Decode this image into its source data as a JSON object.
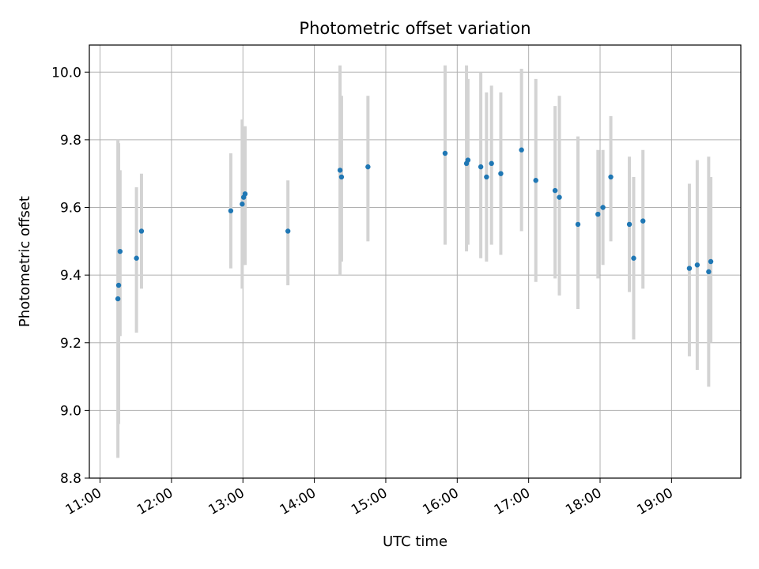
{
  "chart_data": {
    "type": "scatter",
    "title": "Photometric offset variation",
    "xlabel": "UTC time",
    "ylabel": "Photometric offset",
    "x_unit": "hours (UTC)",
    "xlim": [
      10.85,
      19.97
    ],
    "ylim": [
      8.8,
      10.08
    ],
    "x_tick_values": [
      11,
      12,
      13,
      14,
      15,
      16,
      17,
      18,
      19
    ],
    "x_tick_labels": [
      "11:00",
      "12:00",
      "13:00",
      "14:00",
      "15:00",
      "16:00",
      "17:00",
      "18:00",
      "19:00"
    ],
    "y_tick_values": [
      8.8,
      9.0,
      9.2,
      9.4,
      9.6,
      9.8,
      10.0
    ],
    "y_tick_labels": [
      "8.8",
      "9.0",
      "9.2",
      "9.4",
      "9.6",
      "9.8",
      "10.0"
    ],
    "grid": true,
    "marker_color": "#1f77b4",
    "errorbar_color": "#d3d3d3",
    "points": [
      {
        "x": 11.25,
        "y": 9.33,
        "ylow": 8.86,
        "yhigh": 9.8
      },
      {
        "x": 11.26,
        "y": 9.37,
        "ylow": 8.96,
        "yhigh": 9.79
      },
      {
        "x": 11.28,
        "y": 9.47,
        "ylow": 9.22,
        "yhigh": 9.71
      },
      {
        "x": 11.51,
        "y": 9.45,
        "ylow": 9.23,
        "yhigh": 9.66
      },
      {
        "x": 11.58,
        "y": 9.53,
        "ylow": 9.36,
        "yhigh": 9.7
      },
      {
        "x": 12.83,
        "y": 9.59,
        "ylow": 9.42,
        "yhigh": 9.76
      },
      {
        "x": 12.99,
        "y": 9.61,
        "ylow": 9.36,
        "yhigh": 9.86
      },
      {
        "x": 13.01,
        "y": 9.63,
        "ylow": 9.43,
        "yhigh": 9.83
      },
      {
        "x": 13.03,
        "y": 9.64,
        "ylow": 9.43,
        "yhigh": 9.84
      },
      {
        "x": 13.63,
        "y": 9.53,
        "ylow": 9.37,
        "yhigh": 9.68
      },
      {
        "x": 14.36,
        "y": 9.71,
        "ylow": 9.4,
        "yhigh": 10.02
      },
      {
        "x": 14.38,
        "y": 9.69,
        "ylow": 9.44,
        "yhigh": 9.93
      },
      {
        "x": 14.75,
        "y": 9.72,
        "ylow": 9.5,
        "yhigh": 9.93
      },
      {
        "x": 15.83,
        "y": 9.76,
        "ylow": 9.49,
        "yhigh": 10.02
      },
      {
        "x": 16.13,
        "y": 9.73,
        "ylow": 9.47,
        "yhigh": 10.02
      },
      {
        "x": 16.15,
        "y": 9.74,
        "ylow": 9.49,
        "yhigh": 9.98
      },
      {
        "x": 16.33,
        "y": 9.72,
        "ylow": 9.45,
        "yhigh": 10.0
      },
      {
        "x": 16.41,
        "y": 9.69,
        "ylow": 9.44,
        "yhigh": 9.94
      },
      {
        "x": 16.48,
        "y": 9.73,
        "ylow": 9.49,
        "yhigh": 9.96
      },
      {
        "x": 16.61,
        "y": 9.7,
        "ylow": 9.46,
        "yhigh": 9.94
      },
      {
        "x": 16.9,
        "y": 9.77,
        "ylow": 9.53,
        "yhigh": 10.01
      },
      {
        "x": 17.1,
        "y": 9.68,
        "ylow": 9.38,
        "yhigh": 9.98
      },
      {
        "x": 17.37,
        "y": 9.65,
        "ylow": 9.39,
        "yhigh": 9.9
      },
      {
        "x": 17.43,
        "y": 9.63,
        "ylow": 9.34,
        "yhigh": 9.93
      },
      {
        "x": 17.69,
        "y": 9.55,
        "ylow": 9.3,
        "yhigh": 9.81
      },
      {
        "x": 17.97,
        "y": 9.58,
        "ylow": 9.39,
        "yhigh": 9.77
      },
      {
        "x": 18.04,
        "y": 9.6,
        "ylow": 9.43,
        "yhigh": 9.77
      },
      {
        "x": 18.15,
        "y": 9.69,
        "ylow": 9.5,
        "yhigh": 9.87
      },
      {
        "x": 18.41,
        "y": 9.55,
        "ylow": 9.35,
        "yhigh": 9.75
      },
      {
        "x": 18.47,
        "y": 9.45,
        "ylow": 9.21,
        "yhigh": 9.69
      },
      {
        "x": 18.6,
        "y": 9.56,
        "ylow": 9.36,
        "yhigh": 9.77
      },
      {
        "x": 19.25,
        "y": 9.42,
        "ylow": 9.16,
        "yhigh": 9.67
      },
      {
        "x": 19.36,
        "y": 9.43,
        "ylow": 9.12,
        "yhigh": 9.74
      },
      {
        "x": 19.52,
        "y": 9.41,
        "ylow": 9.07,
        "yhigh": 9.75
      },
      {
        "x": 19.55,
        "y": 9.44,
        "ylow": 9.2,
        "yhigh": 9.69
      }
    ]
  }
}
